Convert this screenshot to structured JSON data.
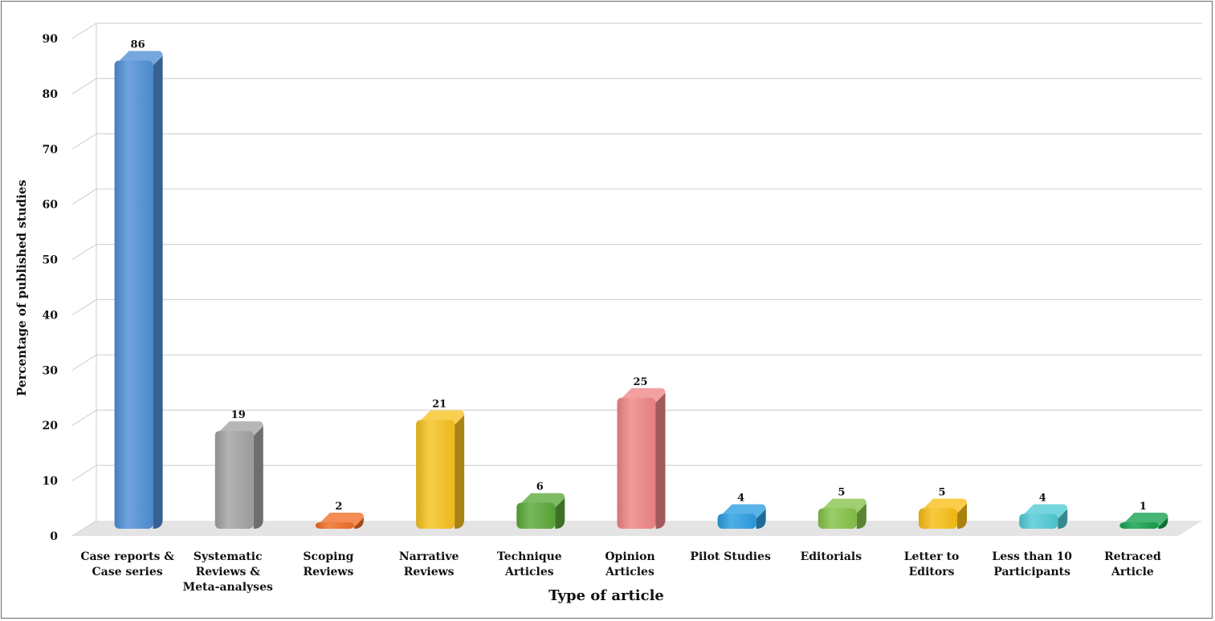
{
  "chart_data": {
    "type": "bar",
    "title": "",
    "xlabel": "Type of article",
    "ylabel": "Percentage of published studies",
    "ylim": [
      0,
      90
    ],
    "yticks": [
      0,
      10,
      20,
      30,
      40,
      50,
      60,
      70,
      80,
      90
    ],
    "grid": true,
    "legend": "none",
    "categories": [
      [
        "Case reports &",
        "Case series"
      ],
      [
        "Systematic",
        "Reviews &",
        "Meta-analyses"
      ],
      [
        "Scoping",
        "Reviews"
      ],
      [
        "Narrative",
        "Reviews"
      ],
      [
        "Technique",
        "Articles"
      ],
      [
        "Opinion",
        "Articles"
      ],
      [
        "Pilot Studies"
      ],
      [
        "Editorials"
      ],
      [
        "Letter to",
        "Editors"
      ],
      [
        "Less than 10",
        "Participants"
      ],
      [
        "Retraced",
        "Article"
      ]
    ],
    "values": [
      86,
      19,
      2,
      21,
      6,
      25,
      4,
      5,
      5,
      4,
      1
    ],
    "colors": [
      "#4f8fd6",
      "#a2a2a2",
      "#ef6d25",
      "#f7c21f",
      "#5aa838",
      "#ef8585",
      "#2a9de0",
      "#84c248",
      "#f8be14",
      "#4fcad5",
      "#13a04c"
    ]
  }
}
